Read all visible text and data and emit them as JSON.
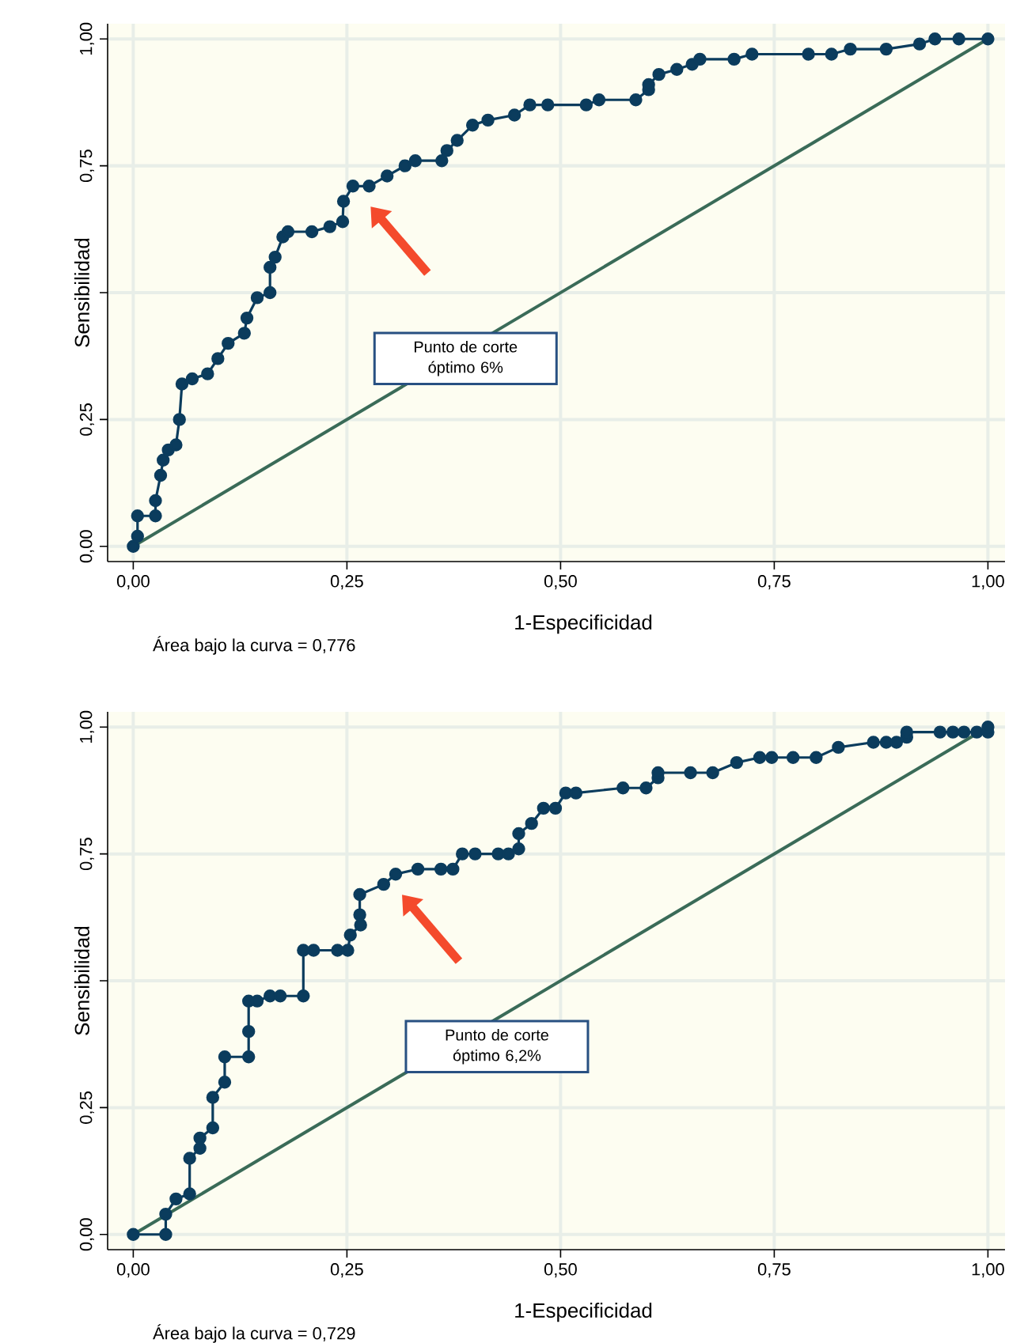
{
  "chart_data": [
    {
      "type": "line",
      "xlabel": "1-Especificidad",
      "ylabel": "Sensibilidad",
      "xlim": [
        -0.03,
        1.02
      ],
      "ylim": [
        -0.03,
        1.03
      ],
      "xticks": [
        {
          "value": 0,
          "label": "0,00"
        },
        {
          "value": 0.25,
          "label": "0,25"
        },
        {
          "value": 0.5,
          "label": "0,50"
        },
        {
          "value": 0.75,
          "label": "0,75"
        },
        {
          "value": 1,
          "label": "1,00"
        }
      ],
      "yticks": [
        {
          "value": 0,
          "label": "0,00"
        },
        {
          "value": 0.25,
          "label": "0,25"
        },
        {
          "value": 0.5,
          "label": null
        },
        {
          "value": 0.75,
          "label": "0,75"
        },
        {
          "value": 1,
          "label": "1,00"
        }
      ],
      "grid": true,
      "marker": "circle",
      "series": [
        {
          "color": "#0b3c5d",
          "x": [
            0,
            0.005,
            0.005,
            0.026,
            0.026,
            0.032,
            0.035,
            0.041,
            0.05,
            0.054,
            0.057,
            0.069,
            0.087,
            0.099,
            0.111,
            0.13,
            0.133,
            0.145,
            0.16,
            0.16,
            0.166,
            0.175,
            0.181,
            0.209,
            0.23,
            0.245,
            0.246,
            0.257,
            0.276,
            0.297,
            0.318,
            0.33,
            0.361,
            0.367,
            0.379,
            0.397,
            0.415,
            0.446,
            0.464,
            0.485,
            0.53,
            0.545,
            0.588,
            0.603,
            0.603,
            0.615,
            0.636,
            0.654,
            0.663,
            0.703,
            0.724,
            0.79,
            0.817,
            0.839,
            0.881,
            0.92,
            0.938,
            0.966,
            1.0
          ],
          "values": [
            0,
            0.02,
            0.06,
            0.06,
            0.09,
            0.14,
            0.17,
            0.19,
            0.2,
            0.25,
            0.32,
            0.33,
            0.34,
            0.37,
            0.4,
            0.42,
            0.45,
            0.49,
            0.5,
            0.55,
            0.57,
            0.61,
            0.62,
            0.62,
            0.63,
            0.64,
            0.68,
            0.71,
            0.71,
            0.73,
            0.75,
            0.76,
            0.76,
            0.78,
            0.8,
            0.83,
            0.84,
            0.85,
            0.87,
            0.87,
            0.87,
            0.88,
            0.88,
            0.9,
            0.91,
            0.93,
            0.94,
            0.95,
            0.96,
            0.96,
            0.97,
            0.97,
            0.97,
            0.98,
            0.98,
            0.99,
            1.0,
            1.0,
            1.0
          ]
        },
        {
          "type": "line",
          "marker": "none",
          "color": "#3a6b58",
          "x": [
            0,
            1
          ],
          "values": [
            0,
            1
          ]
        }
      ],
      "annotations": [
        "Punto de corte óptimo 6%",
        "Área bajo la curva = 0,776"
      ]
    },
    {
      "type": "line",
      "xlabel": "1-Especificidad",
      "ylabel": "Sensibilidad",
      "xlim": [
        -0.03,
        1.02
      ],
      "ylim": [
        -0.03,
        1.03
      ],
      "xticks": [
        {
          "value": 0,
          "label": "0,00"
        },
        {
          "value": 0.25,
          "label": "0,25"
        },
        {
          "value": 0.5,
          "label": "0,50"
        },
        {
          "value": 0.75,
          "label": "0,75"
        },
        {
          "value": 1,
          "label": "1,00"
        }
      ],
      "yticks": [
        {
          "value": 0,
          "label": "0,00"
        },
        {
          "value": 0.25,
          "label": "0,25"
        },
        {
          "value": 0.5,
          "label": null
        },
        {
          "value": 0.75,
          "label": "0,75"
        },
        {
          "value": 1,
          "label": "1,00"
        }
      ],
      "grid": true,
      "marker": "circle",
      "series": [
        {
          "color": "#0b3c5d",
          "x": [
            0,
            0.038,
            0.038,
            0.05,
            0.066,
            0.066,
            0.078,
            0.078,
            0.093,
            0.093,
            0.107,
            0.107,
            0.135,
            0.135,
            0.135,
            0.145,
            0.16,
            0.172,
            0.199,
            0.199,
            0.211,
            0.239,
            0.251,
            0.254,
            0.266,
            0.265,
            0.265,
            0.293,
            0.307,
            0.333,
            0.36,
            0.374,
            0.385,
            0.4,
            0.427,
            0.439,
            0.451,
            0.451,
            0.466,
            0.48,
            0.494,
            0.506,
            0.518,
            0.573,
            0.6,
            0.614,
            0.614,
            0.652,
            0.678,
            0.706,
            0.733,
            0.747,
            0.772,
            0.799,
            0.825,
            0.866,
            0.881,
            0.893,
            0.905,
            0.905,
            0.944,
            0.959,
            0.972,
            0.987,
            1.0,
            1.0
          ],
          "values": [
            0,
            0,
            0.04,
            0.07,
            0.08,
            0.15,
            0.17,
            0.19,
            0.21,
            0.27,
            0.3,
            0.35,
            0.35,
            0.4,
            0.46,
            0.46,
            0.47,
            0.47,
            0.47,
            0.56,
            0.56,
            0.56,
            0.56,
            0.59,
            0.61,
            0.63,
            0.67,
            0.69,
            0.71,
            0.72,
            0.72,
            0.72,
            0.75,
            0.75,
            0.75,
            0.75,
            0.76,
            0.79,
            0.81,
            0.84,
            0.84,
            0.87,
            0.87,
            0.88,
            0.88,
            0.9,
            0.91,
            0.91,
            0.91,
            0.93,
            0.94,
            0.94,
            0.94,
            0.94,
            0.96,
            0.97,
            0.97,
            0.97,
            0.98,
            0.99,
            0.99,
            0.99,
            0.99,
            0.99,
            0.99,
            1.0
          ]
        },
        {
          "type": "line",
          "marker": "none",
          "color": "#3a6b58",
          "x": [
            0,
            1
          ],
          "values": [
            0,
            1
          ]
        }
      ],
      "annotations": [
        "Punto de corte óptimo 6,2%",
        "Área bajo la curva = 0,729"
      ]
    }
  ]
}
